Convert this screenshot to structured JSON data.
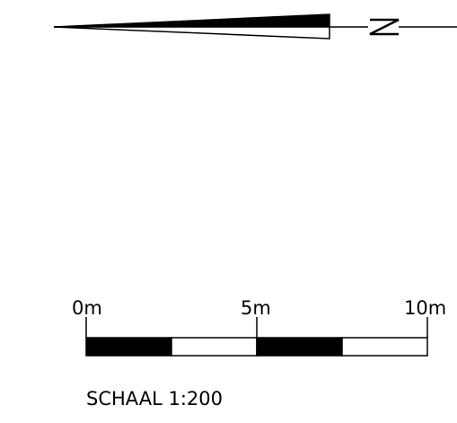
{
  "north_arrow": {
    "direction_label": "N",
    "colors": {
      "fill": "#000000",
      "background": "#ffffff"
    }
  },
  "scale_bar": {
    "tick_labels": [
      "0m",
      "5m",
      "10m"
    ],
    "caption": "SCHAAL 1:200",
    "segments": [
      "black",
      "white",
      "black",
      "white"
    ],
    "colors": {
      "black": "#000000",
      "white": "#ffffff"
    }
  }
}
